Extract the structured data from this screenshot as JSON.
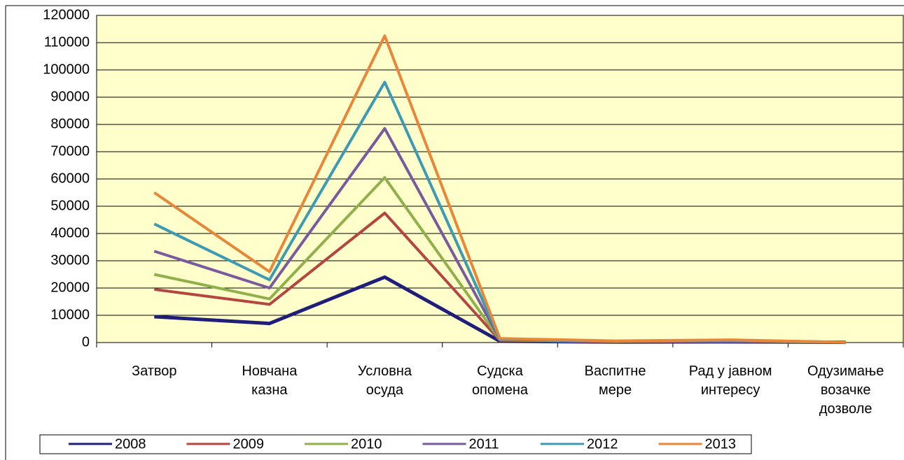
{
  "chart_data": {
    "type": "line",
    "categories": [
      "Затвор",
      "Новчана\nказна",
      "Условна\nосуда",
      "Судска\nопомена",
      "Васпитне\nмере",
      "Рад у јавном\nинтересу",
      "Одузимање\nвозачке\nдозволе"
    ],
    "series": [
      {
        "name": "2008",
        "color": "#1f1f7a",
        "values": [
          9500,
          7000,
          24000,
          500,
          200,
          300,
          100
        ]
      },
      {
        "name": "2009",
        "color": "#b5453f",
        "values": [
          19500,
          14000,
          47500,
          800,
          300,
          500,
          100
        ]
      },
      {
        "name": "2010",
        "color": "#8fb04a",
        "values": [
          25000,
          16000,
          60500,
          1000,
          400,
          600,
          100
        ]
      },
      {
        "name": "2011",
        "color": "#7a5a9e",
        "values": [
          33500,
          20000,
          78500,
          1200,
          500,
          800,
          100
        ]
      },
      {
        "name": "2012",
        "color": "#3c9bb3",
        "values": [
          43500,
          23000,
          95500,
          1300,
          500,
          900,
          100
        ]
      },
      {
        "name": "2013",
        "color": "#e8873a",
        "values": [
          55000,
          26000,
          112500,
          1500,
          600,
          1000,
          100
        ]
      }
    ],
    "ylim": [
      0,
      120000
    ],
    "yticks": [
      0,
      10000,
      20000,
      30000,
      40000,
      50000,
      60000,
      70000,
      80000,
      90000,
      100000,
      110000,
      120000
    ],
    "grid": true,
    "legend": "bottom"
  }
}
